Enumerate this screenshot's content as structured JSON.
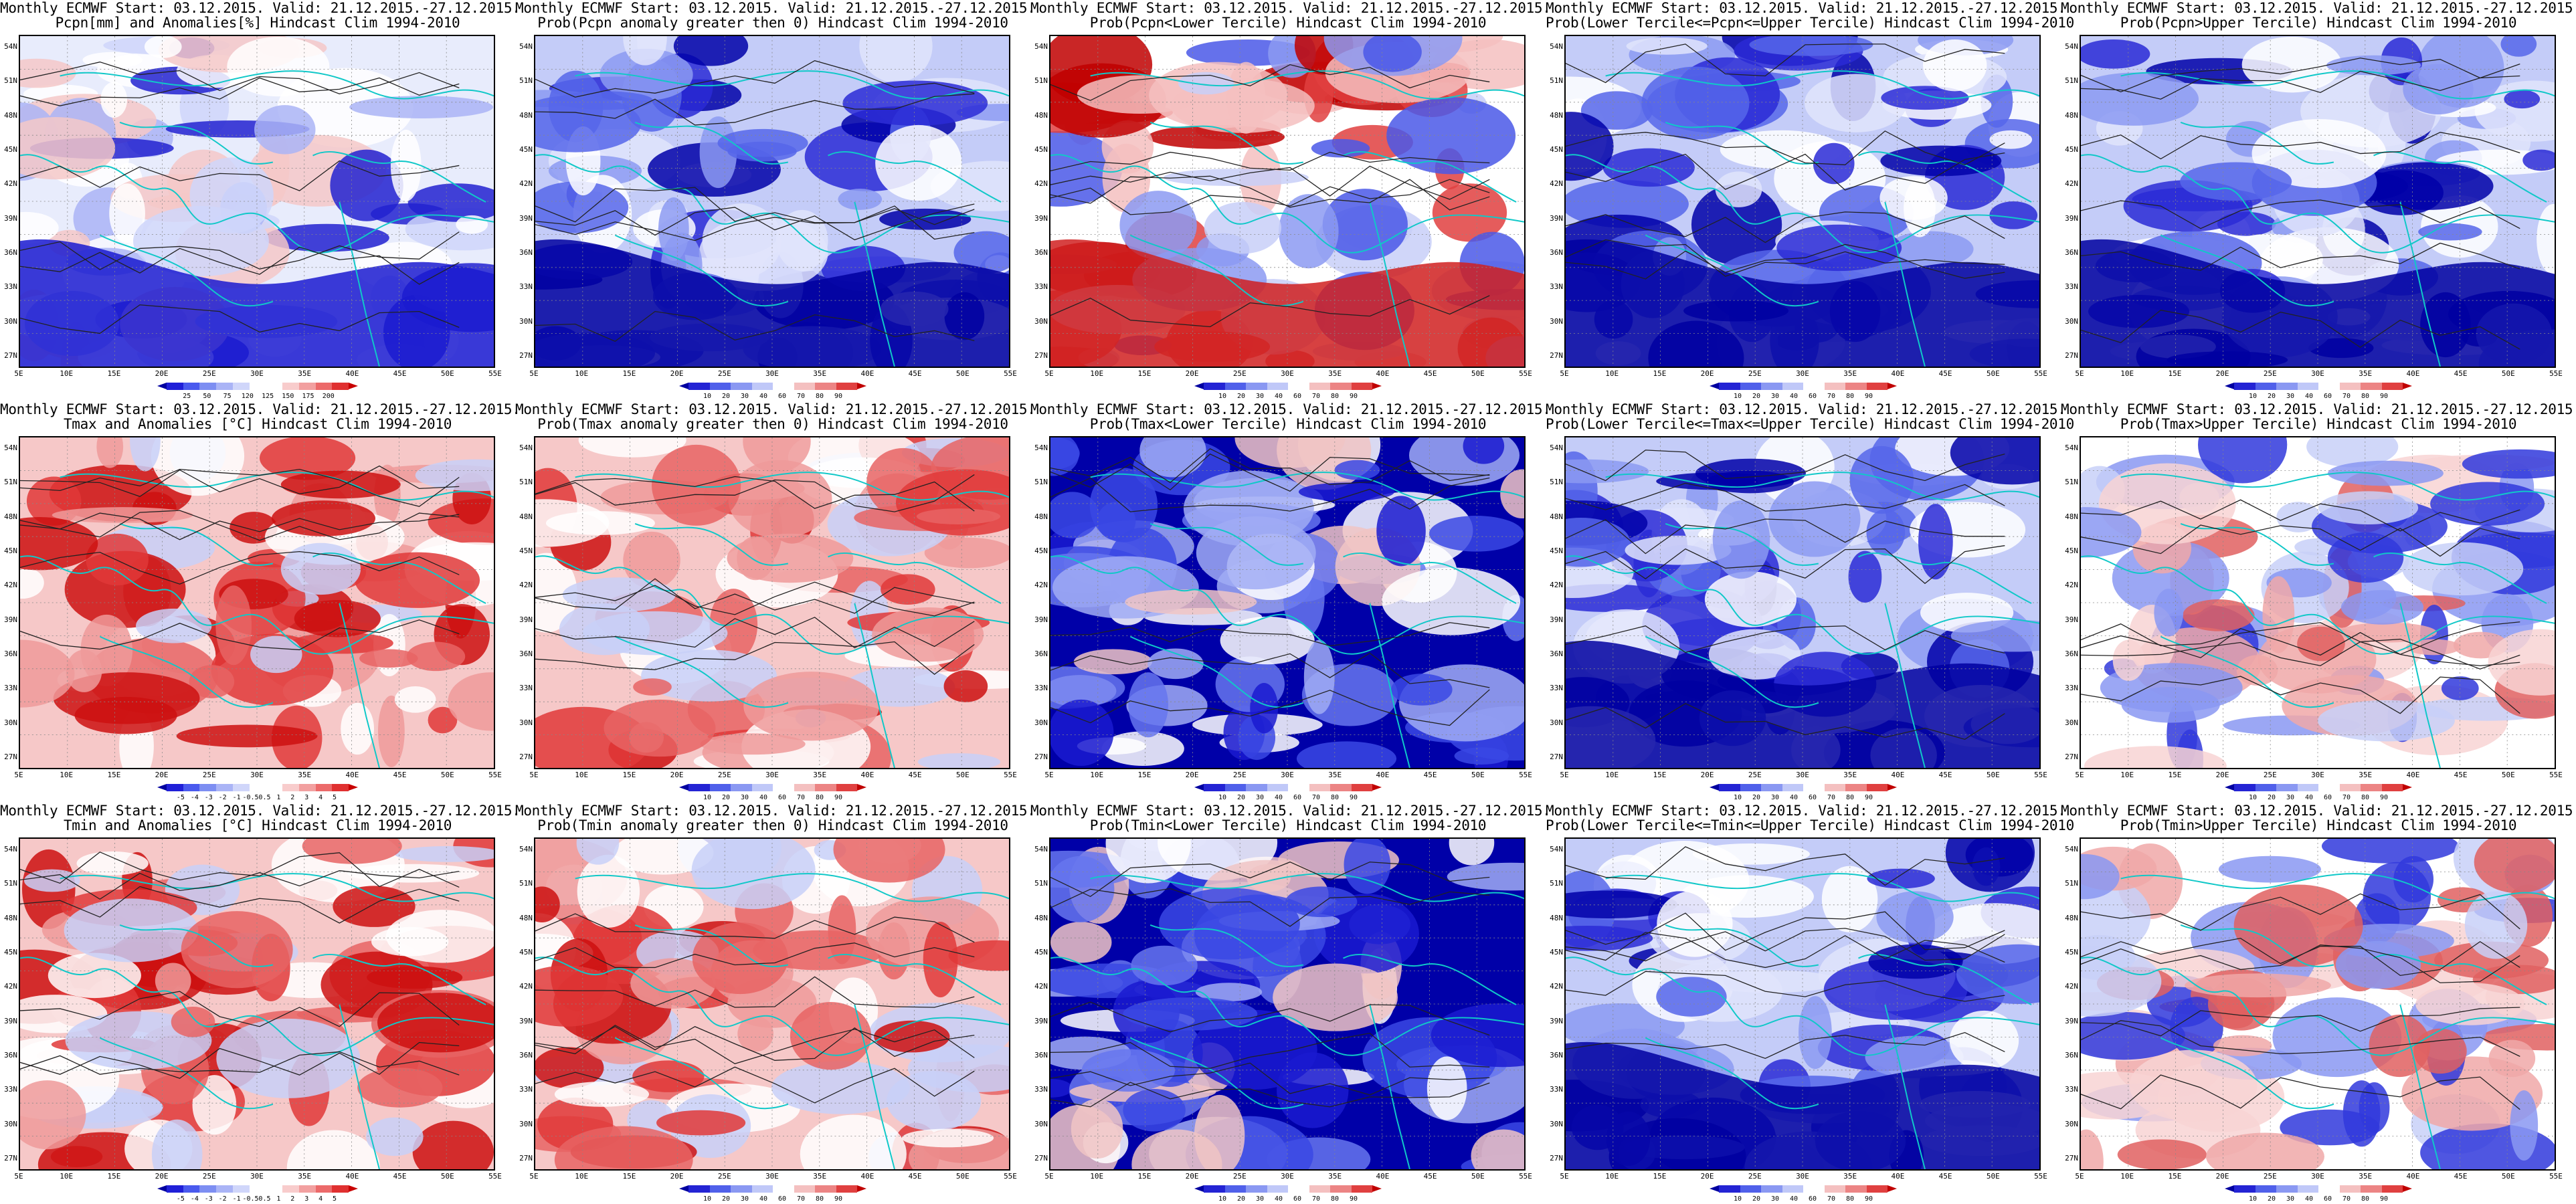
{
  "lat_labels": [
    "54N",
    "51N",
    "48N",
    "45N",
    "42N",
    "39N",
    "36N",
    "33N",
    "30N",
    "27N"
  ],
  "lon_labels": [
    "5E",
    "10E",
    "15E",
    "20E",
    "25E",
    "30E",
    "35E",
    "40E",
    "45E",
    "50E",
    "55E"
  ],
  "palettes": {
    "anom": [
      "#0000a0",
      "#2020d8",
      "#4a5aee",
      "#7d8ef2",
      "#aab4f6",
      "#d0d6fa",
      "#ffffff",
      "#ffffff",
      "#f8cccc",
      "#f2a0a0",
      "#ec6a6a",
      "#e03030",
      "#c80000"
    ],
    "prob": [
      "#0000a0",
      "#2424d4",
      "#5060ea",
      "#8a98f2",
      "#c0c8f8",
      "#ffffff",
      "#f4c0c0",
      "#ec8484",
      "#e04040",
      "#c00000"
    ]
  },
  "panels": [
    {
      "title1": "Monthly ECMWF Start: 03.12.2015. Valid: 21.12.2015.-27.12.2015.",
      "title2": "Pcpn[mm] and Anomalies[%] Hindcast Clim 1994-2010",
      "scale": "anom",
      "ticks": [
        "25",
        "50",
        "75",
        "120",
        "125",
        "150",
        "175",
        "200"
      ],
      "style": "pcpn"
    },
    {
      "title1": "Monthly ECMWF Start: 03.12.2015. Valid: 21.12.2015.-27.12.2015.",
      "title2": "Prob(Pcpn anomaly greater then 0) Hindcast Clim 1994-2010",
      "scale": "prob",
      "ticks": [
        "10",
        "20",
        "30",
        "40",
        "60",
        "70",
        "80",
        "90"
      ],
      "style": "blue"
    },
    {
      "title1": "Monthly ECMWF Start: 03.12.2015. Valid: 21.12.2015.-27.12.2015.",
      "title2": "Prob(Pcpn<Lower Tercile) Hindcast Clim 1994-2010",
      "scale": "prob",
      "ticks": [
        "10",
        "20",
        "30",
        "40",
        "60",
        "70",
        "80",
        "90"
      ],
      "style": "mixed"
    },
    {
      "title1": "Monthly ECMWF Start: 03.12.2015. Valid: 21.12.2015.-27.12.2015.",
      "title2": "Prob(Lower Tercile<=Pcpn<=Upper Tercile) Hindcast Clim 1994-2010",
      "scale": "prob",
      "ticks": [
        "10",
        "20",
        "30",
        "40",
        "60",
        "70",
        "80",
        "90"
      ],
      "style": "blue"
    },
    {
      "title1": "Monthly ECMWF Start: 03.12.2015. Valid: 21.12.2015.-27.12.2015.",
      "title2": "Prob(Pcpn>Upper Tercile) Hindcast Clim 1994-2010",
      "scale": "prob",
      "ticks": [
        "10",
        "20",
        "30",
        "40",
        "60",
        "70",
        "80",
        "90"
      ],
      "style": "blue"
    },
    {
      "title1": "Monthly ECMWF Start: 03.12.2015. Valid: 21.12.2015.-27.12.2015.",
      "title2": "Tmax and Anomalies [°C] Hindcast Clim 1994-2010",
      "scale": "anom",
      "ticks": [
        "-5",
        "-4",
        "-3",
        "-2",
        "-1",
        "-0.5",
        "0.5",
        "1",
        "2",
        "3",
        "4",
        "5"
      ],
      "style": "red"
    },
    {
      "title1": "Monthly ECMWF Start: 03.12.2015. Valid: 21.12.2015.-27.12.2015.",
      "title2": "Prob(Tmax anomaly greater then 0) Hindcast Clim 1994-2010",
      "scale": "prob",
      "ticks": [
        "10",
        "20",
        "30",
        "40",
        "60",
        "70",
        "80",
        "90"
      ],
      "style": "red"
    },
    {
      "title1": "Monthly ECMWF Start: 03.12.2015. Valid: 21.12.2015.-27.12.2015.",
      "title2": "Prob(Tmax<Lower Tercile) Hindcast Clim 1994-2010",
      "scale": "prob",
      "ticks": [
        "10",
        "20",
        "30",
        "40",
        "60",
        "70",
        "80",
        "90"
      ],
      "style": "deepblue"
    },
    {
      "title1": "Monthly ECMWF Start: 03.12.2015. Valid: 21.12.2015.-27.12.2015.",
      "title2": "Prob(Lower Tercile<=Tmax<=Upper Tercile) Hindcast Clim 1994-2010",
      "scale": "prob",
      "ticks": [
        "10",
        "20",
        "30",
        "40",
        "60",
        "70",
        "80",
        "90"
      ],
      "style": "blue"
    },
    {
      "title1": "Monthly ECMWF Start: 03.12.2015. Valid: 21.12.2015.-27.12.2015.",
      "title2": "Prob(Tmax>Upper Tercile) Hindcast Clim 1994-2010",
      "scale": "prob",
      "ticks": [
        "10",
        "20",
        "30",
        "40",
        "60",
        "70",
        "80",
        "90"
      ],
      "style": "lightred"
    },
    {
      "title1": "Monthly ECMWF Start: 03.12.2015. Valid: 21.12.2015.-27.12.2015.",
      "title2": "Tmin and Anomalies [°C] Hindcast Clim 1994-2010",
      "scale": "anom",
      "ticks": [
        "-5",
        "-4",
        "-3",
        "-2",
        "-1",
        "-0.5",
        "0.5",
        "1",
        "2",
        "3",
        "4",
        "5"
      ],
      "style": "red"
    },
    {
      "title1": "Monthly ECMWF Start: 03.12.2015. Valid: 21.12.2015.-27.12.2015.",
      "title2": "Prob(Tmin anomaly greater then 0) Hindcast Clim 1994-2010",
      "scale": "prob",
      "ticks": [
        "10",
        "20",
        "30",
        "40",
        "60",
        "70",
        "80",
        "90"
      ],
      "style": "red"
    },
    {
      "title1": "Monthly ECMWF Start: 03.12.2015. Valid: 21.12.2015.-27.12.2015.",
      "title2": "Prob(Tmin<Lower Tercile) Hindcast Clim 1994-2010",
      "scale": "prob",
      "ticks": [
        "10",
        "20",
        "30",
        "40",
        "60",
        "70",
        "80",
        "90"
      ],
      "style": "deepblue"
    },
    {
      "title1": "Monthly ECMWF Start: 03.12.2015. Valid: 21.12.2015.-27.12.2015.",
      "title2": "Prob(Lower Tercile<=Tmin<=Upper Tercile) Hindcast Clim 1994-2010",
      "scale": "prob",
      "ticks": [
        "10",
        "20",
        "30",
        "40",
        "60",
        "70",
        "80",
        "90"
      ],
      "style": "blue"
    },
    {
      "title1": "Monthly ECMWF Start: 03.12.2015. Valid: 21.12.2015.-27.12.2015.",
      "title2": "Prob(Tmin>Upper Tercile) Hindcast Clim 1994-2010",
      "scale": "prob",
      "ticks": [
        "10",
        "20",
        "30",
        "40",
        "60",
        "70",
        "80",
        "90"
      ],
      "style": "lightred"
    }
  ]
}
